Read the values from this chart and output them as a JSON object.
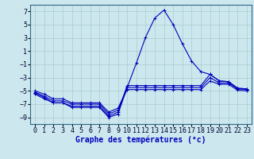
{
  "x": [
    0,
    1,
    2,
    3,
    4,
    5,
    6,
    7,
    8,
    9,
    10,
    11,
    12,
    13,
    14,
    15,
    16,
    17,
    18,
    19,
    20,
    21,
    22,
    23
  ],
  "line1": [
    -5.5,
    -6.2,
    -6.8,
    -6.8,
    -7.5,
    -7.5,
    -7.5,
    -7.5,
    -9.0,
    -8.5,
    -4.5,
    -0.8,
    3.1,
    6.0,
    7.2,
    5.0,
    2.1,
    -0.5,
    -2.1,
    -2.5,
    -3.5,
    -3.6,
    -4.6,
    -4.7
  ],
  "line2": [
    -5.3,
    -6.0,
    -6.8,
    -6.8,
    -7.3,
    -7.3,
    -7.3,
    -7.3,
    -8.8,
    -8.2,
    -4.2,
    -4.2,
    -4.2,
    -4.2,
    -4.2,
    -4.2,
    -4.2,
    -4.2,
    -4.2,
    -2.5,
    -3.5,
    -3.6,
    -4.6,
    -4.7
  ],
  "line3": [
    -5.2,
    -5.8,
    -6.5,
    -6.5,
    -7.0,
    -7.0,
    -7.0,
    -7.0,
    -8.5,
    -7.9,
    -4.5,
    -4.5,
    -4.5,
    -4.5,
    -4.5,
    -4.5,
    -4.5,
    -4.5,
    -4.5,
    -3.0,
    -3.8,
    -3.8,
    -4.7,
    -4.8
  ],
  "line4": [
    -5.0,
    -5.5,
    -6.2,
    -6.2,
    -6.8,
    -6.8,
    -6.8,
    -6.8,
    -8.2,
    -7.6,
    -4.8,
    -4.8,
    -4.8,
    -4.8,
    -4.8,
    -4.8,
    -4.8,
    -4.8,
    -4.8,
    -3.5,
    -4.0,
    -4.0,
    -4.9,
    -5.0
  ],
  "bg_color": "#cce8ee",
  "grid_color": "#aacccc",
  "line_color": "#0000bb",
  "xlabel": "Graphe des températures (°c)",
  "xlabel_fontsize": 7,
  "tick_fontsize": 6,
  "ylim": [
    -10,
    8
  ],
  "yticks": [
    -9,
    -7,
    -5,
    -3,
    -1,
    1,
    3,
    5,
    7
  ],
  "xticks": [
    0,
    1,
    2,
    3,
    4,
    5,
    6,
    7,
    8,
    9,
    10,
    11,
    12,
    13,
    14,
    15,
    16,
    17,
    18,
    19,
    20,
    21,
    22,
    23
  ]
}
